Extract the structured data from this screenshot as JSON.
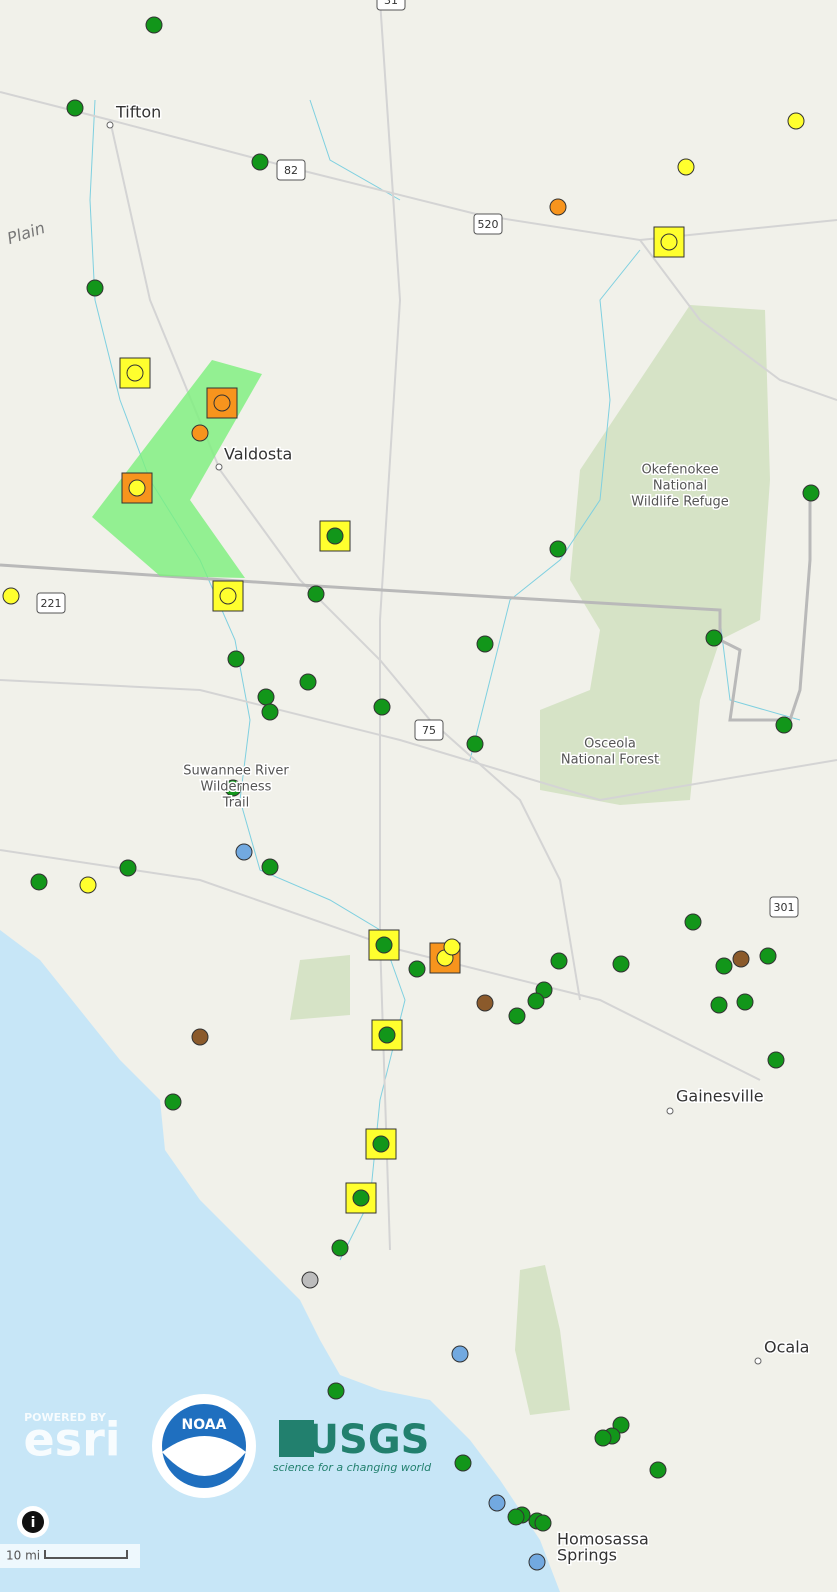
{
  "map": {
    "places": [
      {
        "lines": [
          "Tifton"
        ]
      },
      {
        "lines": [
          "Valdosta"
        ]
      },
      {
        "lines": [
          "Okefenokee",
          "National",
          "Wildlife Refuge"
        ]
      },
      {
        "lines": [
          "Osceola",
          "National Forest"
        ]
      },
      {
        "lines": [
          "Suwannee River",
          "Wilderness",
          "Trail"
        ]
      },
      {
        "lines": [
          "Gainesville"
        ]
      },
      {
        "lines": [
          "Ocala"
        ]
      },
      {
        "lines": [
          "Homosassa",
          "Springs"
        ]
      }
    ],
    "area_label": "Plain",
    "road_shields": [
      "31",
      "82",
      "520",
      "221",
      "75",
      "301"
    ]
  },
  "attribution": {
    "powered_by": "POWERED BY",
    "esri": "esri",
    "noaa": "NOAA",
    "usgs": "USGS",
    "usgs_tagline": "science for a changing world"
  },
  "scale": {
    "label": "10 mi"
  },
  "controls": {
    "info": "i"
  }
}
